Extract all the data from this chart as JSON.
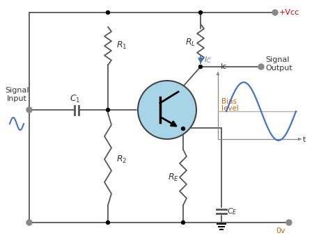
{
  "bg_color": "#ffffff",
  "wire_color": "#555555",
  "resistor_color": "#555555",
  "bjt_fill": "#a8d4e8",
  "bjt_stroke": "#444444",
  "arrow_color": "#4472c4",
  "label_color": "#333333",
  "red_color": "#cc0000",
  "orange_color": "#cc6600",
  "dot_color": "#888888",
  "signal_color": "#4472c4",
  "vcc_text": "+Vcc",
  "ov_text": "0v",
  "ic2_text": "Ic",
  "signal_input_text": "Signal\nInput",
  "signal_output_text": "Signal\nOutput",
  "bias_level_text": "Bias\nlevel",
  "t_text": "t",
  "figw": 4.61,
  "figh": 3.48,
  "dpi": 100
}
